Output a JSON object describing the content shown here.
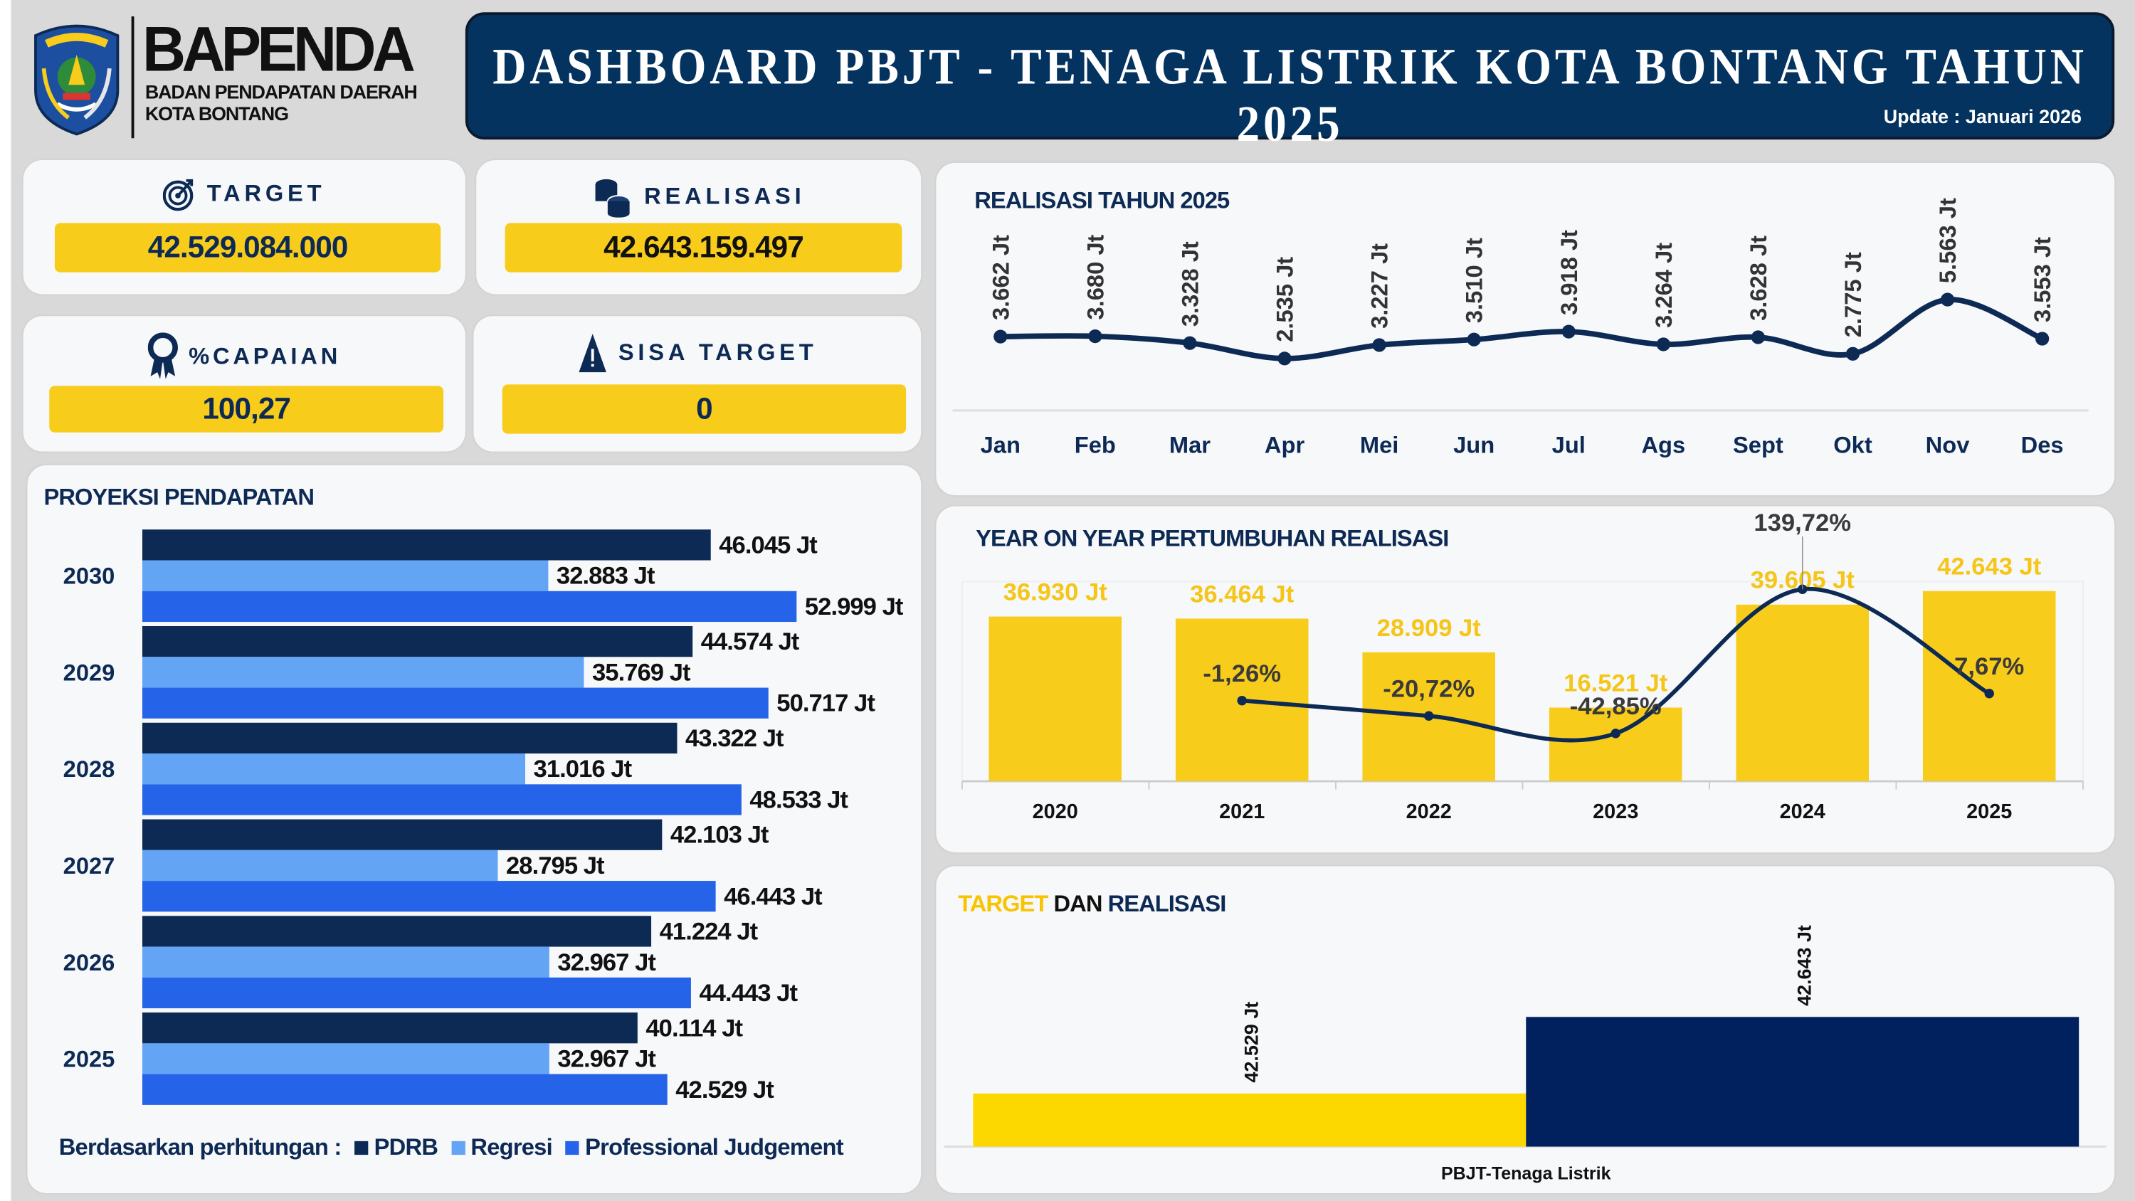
{
  "header": {
    "logo_text": "BAPENDA",
    "logo_sub1": "BADAN PENDAPATAN DAERAH",
    "logo_sub2": "KOTA BONTANG",
    "emblem_text": "KOTA BONTANG",
    "title": "DASHBOARD PBJT - TENAGA LISTRIK KOTA BONTANG TAHUN 2025",
    "update": "Update : Januari 2026",
    "colors": {
      "navy": "#04335f",
      "yellow": "#f8cc1b"
    }
  },
  "kpis": {
    "target": {
      "label": "TARGET",
      "value": "42.529.084.000",
      "icon": "target-icon"
    },
    "realisasi": {
      "label": "REALISASI",
      "value": "42.643.159.497",
      "icon": "coins-icon"
    },
    "capaian": {
      "label": "%CAPAIAN",
      "value": "100,27",
      "icon": "award-ribbon-icon"
    },
    "sisa": {
      "label": "SISA TARGET",
      "value": "0",
      "icon": "warning-icon"
    }
  },
  "chart_data": [
    {
      "id": "proyeksi",
      "type": "bar",
      "orientation": "horizontal",
      "title": "PROYEKSI PENDAPATAN",
      "categories": [
        "2030",
        "2029",
        "2028",
        "2027",
        "2026",
        "2025"
      ],
      "unit": "Jt",
      "series": [
        {
          "name": "PDRB",
          "color": "#0d2a55",
          "values": [
            46.045,
            44.574,
            43.322,
            42.103,
            41.224,
            40.114
          ],
          "labels": [
            "46.045 Jt",
            "44.574 Jt",
            "43.322 Jt",
            "42.103 Jt",
            "41.224 Jt",
            "40.114 Jt"
          ]
        },
        {
          "name": "Regresi",
          "color": "#63a4f5",
          "values": [
            32.883,
            35.769,
            31.016,
            28.795,
            32.967,
            32.967
          ],
          "labels": [
            "32.883 Jt",
            "35.769 Jt",
            "31.016 Jt",
            "28.795 Jt",
            "32.967 Jt",
            "32.967 Jt"
          ]
        },
        {
          "name": "Professional Judgement",
          "color": "#2563e8",
          "values": [
            52.999,
            50.717,
            48.533,
            46.443,
            44.443,
            42.529
          ],
          "labels": [
            "52.999 Jt",
            "50.717 Jt",
            "48.533 Jt",
            "46.443 Jt",
            "44.443 Jt",
            "42.529 Jt"
          ]
        }
      ],
      "legend_prefix": "Berdasarkan perhitungan :",
      "legend_placement": "bottom",
      "xlim": [
        0,
        55
      ]
    },
    {
      "id": "realisasi",
      "type": "line",
      "title": "REALISASI TAHUN 2025",
      "categories": [
        "Jan",
        "Feb",
        "Mar",
        "Apr",
        "Mei",
        "Jun",
        "Jul",
        "Ags",
        "Sept",
        "Okt",
        "Nov",
        "Des"
      ],
      "values": [
        3.662,
        3.68,
        3.328,
        2.535,
        3.227,
        3.51,
        3.918,
        3.264,
        3.628,
        2.775,
        5.563,
        3.553
      ],
      "labels": [
        "3.662 Jt",
        "3.680 Jt",
        "3.328 Jt",
        "2.535 Jt",
        "3.227 Jt",
        "3.510 Jt",
        "3.918 Jt",
        "3.264 Jt",
        "3.628 Jt",
        "2.775 Jt",
        "5.563 Jt",
        "3.553 Jt"
      ],
      "color": "#0d2a55"
    },
    {
      "id": "yoy",
      "type": "bar",
      "title": "YEAR ON YEAR PERTUMBUHAN REALISASI",
      "categories": [
        "2020",
        "2021",
        "2022",
        "2023",
        "2024",
        "2025"
      ],
      "bar_values": [
        36.93,
        36.464,
        28.909,
        16.521,
        39.605,
        42.643
      ],
      "bar_labels": [
        "36.930 Jt",
        "36.464 Jt",
        "28.909 Jt",
        "16.521 Jt",
        "39.605 Jt",
        "42.643 Jt"
      ],
      "growth_values": [
        null,
        -1.26,
        -20.72,
        -42.85,
        139.72,
        7.67
      ],
      "growth_labels": [
        "",
        "-1,26%",
        "-20,72%",
        "-42,85%",
        "139,72%",
        "7,67%"
      ],
      "bar_color": "#f8cc1b",
      "line_color": "#0d2a55"
    },
    {
      "id": "target_realisasi",
      "type": "bar",
      "title_parts": [
        "TARGET",
        "DAN",
        "REALISASI"
      ],
      "category": "PBJT-Tenaga Listrik",
      "series": [
        {
          "name": "Target",
          "value": 42.529,
          "label": "42.529 Jt",
          "color": "#fdd800"
        },
        {
          "name": "Realisasi",
          "value": 42.643,
          "label": "42.643 Jt",
          "color": "#01205e"
        }
      ],
      "ylim": [
        42.45,
        42.66
      ]
    }
  ]
}
